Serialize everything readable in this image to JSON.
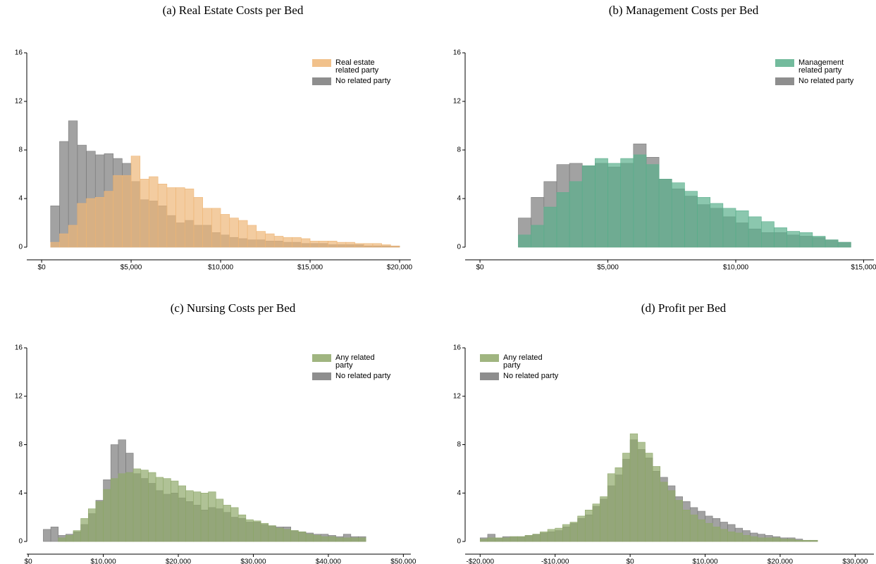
{
  "chart_data": [
    {
      "type": "histogram",
      "title": "(a) Real Estate Costs per Bed",
      "legend": "upper right",
      "bins": [
        500,
        1000,
        1500,
        2000,
        2500,
        3000,
        3500,
        4000,
        4500,
        5000,
        5500,
        6000,
        6500,
        7000,
        7500,
        8000,
        8500,
        9000,
        9500,
        10000,
        10500,
        11000,
        11500,
        12000,
        12500,
        13000,
        13500,
        14000,
        14500,
        15000,
        15500,
        16000,
        16500,
        17000,
        17500,
        18000,
        18500,
        19000,
        19500,
        20000
      ],
      "series": [
        {
          "name": "Real estate related party",
          "color": "#eeb677",
          "values": [
            0.4,
            1.1,
            1.8,
            3.6,
            4.0,
            4.1,
            4.6,
            5.9,
            5.9,
            7.5,
            5.6,
            5.8,
            5.2,
            4.9,
            4.9,
            4.8,
            4.1,
            3.2,
            3.2,
            2.7,
            2.4,
            2.2,
            1.8,
            1.3,
            1.1,
            0.9,
            0.8,
            0.8,
            0.7,
            0.5,
            0.5,
            0.5,
            0.4,
            0.4,
            0.3,
            0.3,
            0.3,
            0.2,
            0.1
          ]
        },
        {
          "name": "No related party",
          "color": "#7a7a7a",
          "values": [
            3.4,
            8.7,
            10.4,
            8.4,
            7.9,
            7.6,
            7.7,
            7.3,
            6.9,
            5.4,
            3.9,
            3.8,
            3.4,
            2.6,
            2.0,
            2.2,
            1.8,
            1.8,
            1.2,
            1.0,
            0.8,
            0.7,
            0.6,
            0.6,
            0.5,
            0.5,
            0.4,
            0.4,
            0.3,
            0.3,
            0.3,
            0.2,
            0.2,
            0.2,
            0.2,
            0.1,
            0.1,
            0.1,
            0.1
          ]
        }
      ],
      "xlim": [
        -830,
        20630
      ],
      "ylim": [
        0,
        16
      ],
      "yticks": [
        0,
        4,
        8,
        12,
        16
      ],
      "xticks": [
        {
          "value": 0,
          "label": "$0"
        },
        {
          "value": 5000,
          "label": "$5,000"
        },
        {
          "value": 10000,
          "label": "$10,000"
        },
        {
          "value": 15000,
          "label": "$15,000"
        },
        {
          "value": 20000,
          "label": "$20,000"
        }
      ]
    },
    {
      "type": "histogram",
      "title": "(b) Management Costs per Bed",
      "legend": "upper right",
      "bins": [
        0,
        500,
        1000,
        1500,
        2000,
        2500,
        3000,
        3500,
        4000,
        4500,
        5000,
        5500,
        6000,
        6500,
        7000,
        7500,
        8000,
        8500,
        9000,
        9500,
        10000,
        10500,
        11000,
        11500,
        12000,
        12500,
        13000,
        13500,
        14000,
        14500
      ],
      "series": [
        {
          "name": "Management related party",
          "color": "#5aaf8c",
          "values": [
            0,
            0,
            0,
            1.0,
            1.8,
            3.3,
            4.5,
            5.4,
            6.7,
            7.3,
            6.9,
            7.3,
            7.6,
            6.8,
            5.6,
            5.3,
            4.6,
            4.1,
            3.6,
            3.2,
            3.0,
            2.5,
            2.1,
            1.6,
            1.3,
            1.2,
            0.9,
            0.6,
            0.4
          ]
        },
        {
          "name": "No related party",
          "color": "#7a7a7a",
          "values": [
            0,
            0,
            0,
            2.4,
            4.1,
            5.4,
            6.8,
            6.9,
            6.7,
            6.9,
            6.6,
            6.9,
            8.5,
            7.4,
            5.6,
            4.8,
            4.2,
            3.5,
            3.2,
            2.5,
            2.0,
            1.5,
            1.2,
            1.2,
            1.0,
            0.9,
            0.8,
            0.6,
            0.4
          ]
        }
      ],
      "xlim": [
        -580,
        15400
      ],
      "ylim": [
        0,
        16
      ],
      "yticks": [
        0,
        4,
        8,
        12,
        16
      ],
      "xticks": [
        {
          "value": 0,
          "label": "$0"
        },
        {
          "value": 5000,
          "label": "$5,000"
        },
        {
          "value": 10000,
          "label": "$10,000"
        },
        {
          "value": 15000,
          "label": "$15,000"
        }
      ]
    },
    {
      "type": "histogram",
      "title": "(c) Nursing Costs per Bed",
      "legend": "upper right",
      "bins": [
        2000,
        3000,
        4000,
        5000,
        6000,
        7000,
        8000,
        9000,
        10000,
        11000,
        12000,
        13000,
        14000,
        15000,
        16000,
        17000,
        18000,
        19000,
        20000,
        21000,
        22000,
        23000,
        24000,
        25000,
        26000,
        27000,
        28000,
        29000,
        30000,
        31000,
        32000,
        33000,
        34000,
        35000,
        36000,
        37000,
        38000,
        39000,
        40000,
        41000,
        42000,
        43000,
        44000,
        45000
      ],
      "series": [
        {
          "name": "Any related party",
          "color": "#8fa86a",
          "values": [
            0,
            0,
            0.3,
            0.5,
            0.9,
            1.9,
            2.7,
            3.3,
            4.3,
            5.2,
            5.6,
            5.7,
            6.0,
            5.9,
            5.7,
            5.3,
            5.2,
            5.0,
            4.6,
            4.2,
            4.1,
            4.0,
            4.1,
            3.5,
            3.0,
            2.8,
            2.2,
            1.8,
            1.7,
            1.5,
            1.3,
            1.1,
            1.0,
            0.9,
            0.8,
            0.6,
            0.5,
            0.4,
            0.4,
            0.3,
            0.3,
            0.3,
            0.3
          ]
        },
        {
          "name": "No related party",
          "color": "#7a7a7a",
          "values": [
            1.0,
            1.2,
            0.5,
            0.6,
            0.8,
            1.4,
            2.3,
            3.4,
            5.1,
            8.0,
            8.4,
            7.3,
            5.6,
            5.2,
            4.8,
            4.2,
            3.9,
            4.0,
            3.6,
            3.3,
            3.0,
            2.6,
            2.8,
            2.7,
            2.4,
            2.0,
            1.9,
            1.6,
            1.6,
            1.4,
            1.3,
            1.2,
            1.2,
            0.9,
            0.8,
            0.7,
            0.6,
            0.6,
            0.5,
            0.4,
            0.6,
            0.4,
            0.4
          ]
        }
      ],
      "xlim": [
        -200,
        51000
      ],
      "ylim": [
        0,
        16
      ],
      "yticks": [
        0,
        4,
        8,
        12,
        16
      ],
      "xticks": [
        {
          "value": 0,
          "label": "$0"
        },
        {
          "value": 10000,
          "label": "$10,000"
        },
        {
          "value": 20000,
          "label": "$20,000"
        },
        {
          "value": 30000,
          "label": "$30,000"
        },
        {
          "value": 40000,
          "label": "$40,000"
        },
        {
          "value": 50000,
          "label": "$50,000"
        }
      ]
    },
    {
      "type": "histogram",
      "title": "(d) Profit per Bed",
      "legend": "upper left",
      "bins": [
        -20000,
        -19000,
        -18000,
        -17000,
        -16000,
        -15000,
        -14000,
        -13000,
        -12000,
        -11000,
        -10000,
        -9000,
        -8000,
        -7000,
        -6000,
        -5000,
        -4000,
        -3000,
        -2000,
        -1000,
        0,
        1000,
        2000,
        3000,
        4000,
        5000,
        6000,
        7000,
        8000,
        9000,
        10000,
        11000,
        12000,
        13000,
        14000,
        15000,
        16000,
        17000,
        18000,
        19000,
        20000,
        21000,
        22000,
        23000,
        24000,
        25000
      ],
      "series": [
        {
          "name": "Any related party",
          "color": "#8fa86a",
          "values": [
            0.2,
            0.3,
            0.3,
            0.3,
            0.4,
            0.4,
            0.5,
            0.6,
            0.8,
            1.0,
            1.1,
            1.4,
            1.6,
            2.1,
            2.6,
            3.1,
            3.7,
            5.6,
            6.1,
            7.3,
            8.9,
            8.2,
            7.3,
            6.2,
            4.9,
            4.2,
            3.4,
            2.6,
            2.2,
            1.8,
            1.5,
            1.2,
            1.0,
            0.8,
            0.7,
            0.5,
            0.4,
            0.3,
            0.3,
            0.3,
            0.2,
            0.2,
            0.1,
            0.1,
            0.1
          ]
        },
        {
          "name": "No related party",
          "color": "#7a7a7a",
          "values": [
            0.3,
            0.6,
            0.3,
            0.4,
            0.4,
            0.4,
            0.5,
            0.6,
            0.7,
            0.8,
            0.9,
            1.2,
            1.5,
            1.9,
            2.2,
            2.9,
            3.5,
            4.6,
            5.5,
            6.8,
            8.4,
            7.6,
            6.9,
            5.8,
            5.3,
            4.6,
            3.7,
            3.3,
            2.8,
            2.5,
            2.1,
            1.9,
            1.6,
            1.4,
            1.1,
            0.9,
            0.7,
            0.6,
            0.5,
            0.4,
            0.3,
            0.3,
            0.2,
            0.1,
            0.1
          ]
        }
      ],
      "xlim": [
        -22000,
        32500
      ],
      "ylim": [
        0,
        16
      ],
      "yticks": [
        0,
        4,
        8,
        12,
        16
      ],
      "xticks": [
        {
          "value": -20000,
          "label": "-$20,000"
        },
        {
          "value": -10000,
          "label": "-$10,000"
        },
        {
          "value": 0,
          "label": "$0"
        },
        {
          "value": 10000,
          "label": "$10,000"
        },
        {
          "value": 20000,
          "label": "$20,000"
        },
        {
          "value": 30000,
          "label": "$30,000"
        }
      ]
    }
  ]
}
